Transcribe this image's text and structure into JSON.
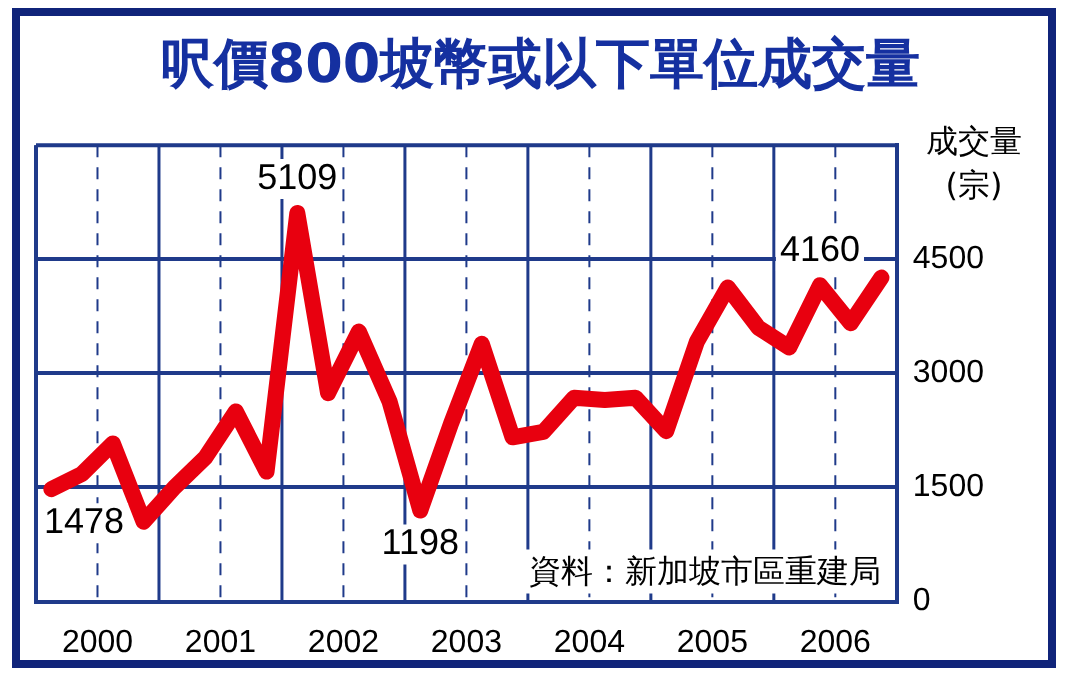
{
  "chart_data": {
    "type": "line",
    "title": "呎價800坡幣或以下單位成交量",
    "ylabel": "成交量\n(宗)",
    "annotations": [
      "資料：新加坡市區重建局"
    ],
    "x": [
      2000.125,
      2000.375,
      2000.625,
      2000.875,
      2001.125,
      2001.375,
      2001.625,
      2001.875,
      2002.125,
      2002.375,
      2002.625,
      2002.875,
      2003.125,
      2003.375,
      2003.625,
      2003.875,
      2004.125,
      2004.375,
      2004.625,
      2004.875,
      2005.125,
      2005.375,
      2005.625,
      2005.875,
      2006.125,
      2006.375,
      2006.625,
      2006.875
    ],
    "series": [
      {
        "color": "#e8000f",
        "values": [
          1478,
          1680,
          2080,
          1050,
          1500,
          1890,
          2500,
          1710,
          5109,
          2740,
          3550,
          2630,
          1198,
          2340,
          3390,
          2160,
          2230,
          2680,
          2650,
          2680,
          2240,
          3420,
          4130,
          3600,
          3340,
          4160,
          3660,
          4260
        ],
        "value_labels": [
          "1478",
          null,
          null,
          null,
          null,
          null,
          null,
          null,
          "5109",
          null,
          null,
          null,
          "1198",
          null,
          null,
          null,
          null,
          null,
          null,
          null,
          null,
          null,
          null,
          null,
          null,
          "4160",
          null,
          null
        ]
      }
    ],
    "xlim": [
      2000,
      2007
    ],
    "xticks": [
      {
        "value": 2000,
        "label": null
      },
      {
        "value": 2000.5,
        "label": "2000"
      },
      {
        "value": 2001,
        "label": null
      },
      {
        "value": 2001.5,
        "label": "2001"
      },
      {
        "value": 2002,
        "label": null
      },
      {
        "value": 2002.5,
        "label": "2002"
      },
      {
        "value": 2003,
        "label": null
      },
      {
        "value": 2003.5,
        "label": "2003"
      },
      {
        "value": 2004,
        "label": null
      },
      {
        "value": 2004.5,
        "label": "2004"
      },
      {
        "value": 2005,
        "label": null
      },
      {
        "value": 2005.5,
        "label": "2005"
      },
      {
        "value": 2006,
        "label": null
      },
      {
        "value": 2006.5,
        "label": "2006"
      },
      {
        "value": 2007,
        "label": null
      }
    ],
    "ylim": [
      0,
      6000
    ],
    "yticks": [
      0,
      1500,
      3000,
      4500
    ],
    "grid": true,
    "legend": false,
    "marker": "none",
    "line_style": "solid"
  }
}
